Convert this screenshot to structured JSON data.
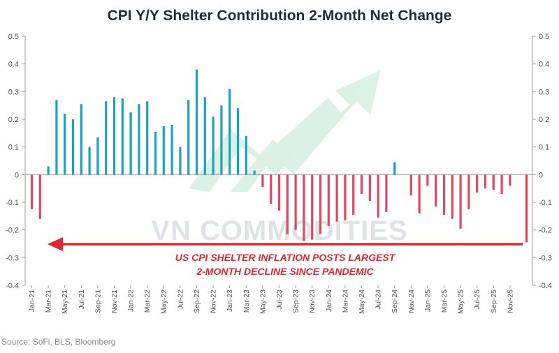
{
  "chart_data": {
    "type": "bar",
    "title": "CPI Y/Y Shelter Contribution 2-Month Net Change",
    "ylim": [
      -0.4,
      0.5
    ],
    "yticks": [
      "0.5",
      "0.4",
      "0.3",
      "0.2",
      "0.1",
      "0",
      "-0.1",
      "-0.2",
      "-0.3",
      "-0.4"
    ],
    "ytick_values": [
      0.5,
      0.4,
      0.3,
      0.2,
      0.1,
      0,
      -0.1,
      -0.2,
      -0.3,
      -0.4
    ],
    "xtick_labels": [
      "Jan-21",
      "Mar-21",
      "May-21",
      "Jul-21",
      "Sep-21",
      "Nov-21",
      "Jan-22",
      "Mar-22",
      "May-22",
      "Jul-22",
      "Sep-22",
      "Nov-22",
      "Jan-23",
      "Mar-23",
      "May-23",
      "Jul-23",
      "Sep-23",
      "Nov-23",
      "Jan-24",
      "Mar-24",
      "May-24",
      "Jul-24",
      "Sep-24",
      "Nov-24",
      "Jan-25",
      "Mar-25",
      "May-25",
      "Jul-25",
      "Sep-25",
      "Nov-25"
    ],
    "values": [
      -0.125,
      -0.16,
      0.03,
      0.27,
      0.22,
      0.2,
      0.255,
      0.1,
      0.135,
      0.265,
      0.28,
      0.275,
      0.225,
      0.255,
      0.265,
      0.155,
      0.175,
      0.18,
      0.1,
      0.27,
      0.38,
      0.28,
      0.21,
      0.25,
      0.31,
      0.24,
      0.14,
      0.015,
      -0.045,
      -0.105,
      -0.13,
      -0.215,
      -0.2,
      -0.24,
      -0.235,
      -0.215,
      -0.185,
      -0.17,
      -0.165,
      -0.145,
      -0.07,
      -0.095,
      -0.155,
      -0.135,
      0.045,
      0,
      -0.075,
      -0.14,
      -0.04,
      -0.115,
      -0.145,
      -0.16,
      -0.195,
      -0.125,
      -0.065,
      -0.05,
      -0.055,
      -0.07,
      -0.04,
      0,
      -0.245
    ],
    "positive_color": "#1aa3bd",
    "negative_color": "#e0485f",
    "annotation": [
      "US CPI SHELTER INFLATION POSTS LARGEST",
      "2-MONTH DECLINE SINCE PANDEMIC"
    ],
    "annotation_color": "#e3262d",
    "source": "Source: SoFi, BLS, Bloomberg"
  },
  "watermark": "VN COMMODITIES"
}
